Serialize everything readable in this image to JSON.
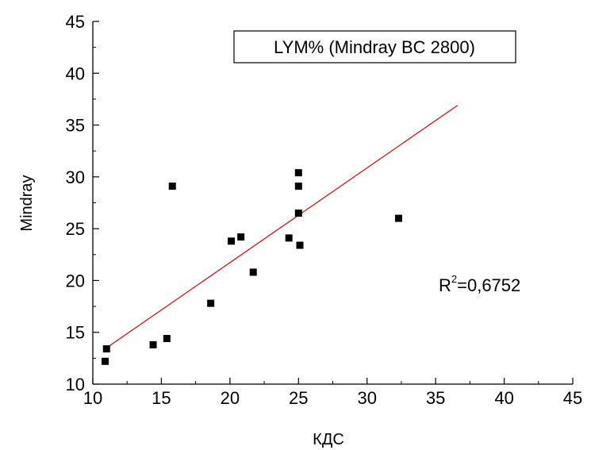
{
  "chart_data": {
    "type": "scatter",
    "title": "",
    "xlabel": "КДС",
    "ylabel": "Mindray",
    "xlim": [
      10,
      45
    ],
    "ylim": [
      10,
      45
    ],
    "xticks": [
      "10",
      "15",
      "20",
      "25",
      "30",
      "35",
      "40",
      "45"
    ],
    "yticks": [
      "10",
      "15",
      "20",
      "25",
      "30",
      "35",
      "40",
      "45"
    ],
    "grid": false,
    "legend": {
      "text": "LYM% (Mindray BC 2800)",
      "placement": "top-right"
    },
    "annotation": {
      "base": "R",
      "sup": "2",
      "rest": "=0,6752"
    },
    "series": [
      {
        "points": [
          {
            "x": 10.9,
            "y": 12.2
          },
          {
            "x": 11.0,
            "y": 13.4
          },
          {
            "x": 14.4,
            "y": 13.8
          },
          {
            "x": 15.4,
            "y": 14.4
          },
          {
            "x": 15.8,
            "y": 29.1
          },
          {
            "x": 18.6,
            "y": 17.8
          },
          {
            "x": 20.1,
            "y": 23.8
          },
          {
            "x": 20.8,
            "y": 24.2
          },
          {
            "x": 21.7,
            "y": 20.8
          },
          {
            "x": 24.3,
            "y": 24.1
          },
          {
            "x": 25.0,
            "y": 30.4
          },
          {
            "x": 25.0,
            "y": 29.1
          },
          {
            "x": 25.0,
            "y": 26.5
          },
          {
            "x": 25.1,
            "y": 23.4
          },
          {
            "x": 32.3,
            "y": 26.0
          }
        ],
        "color": "#000000"
      }
    ],
    "fit_line": {
      "x": [
        11.0,
        36.6
      ],
      "y": [
        13.5,
        36.9
      ],
      "color": "#e00000"
    }
  }
}
